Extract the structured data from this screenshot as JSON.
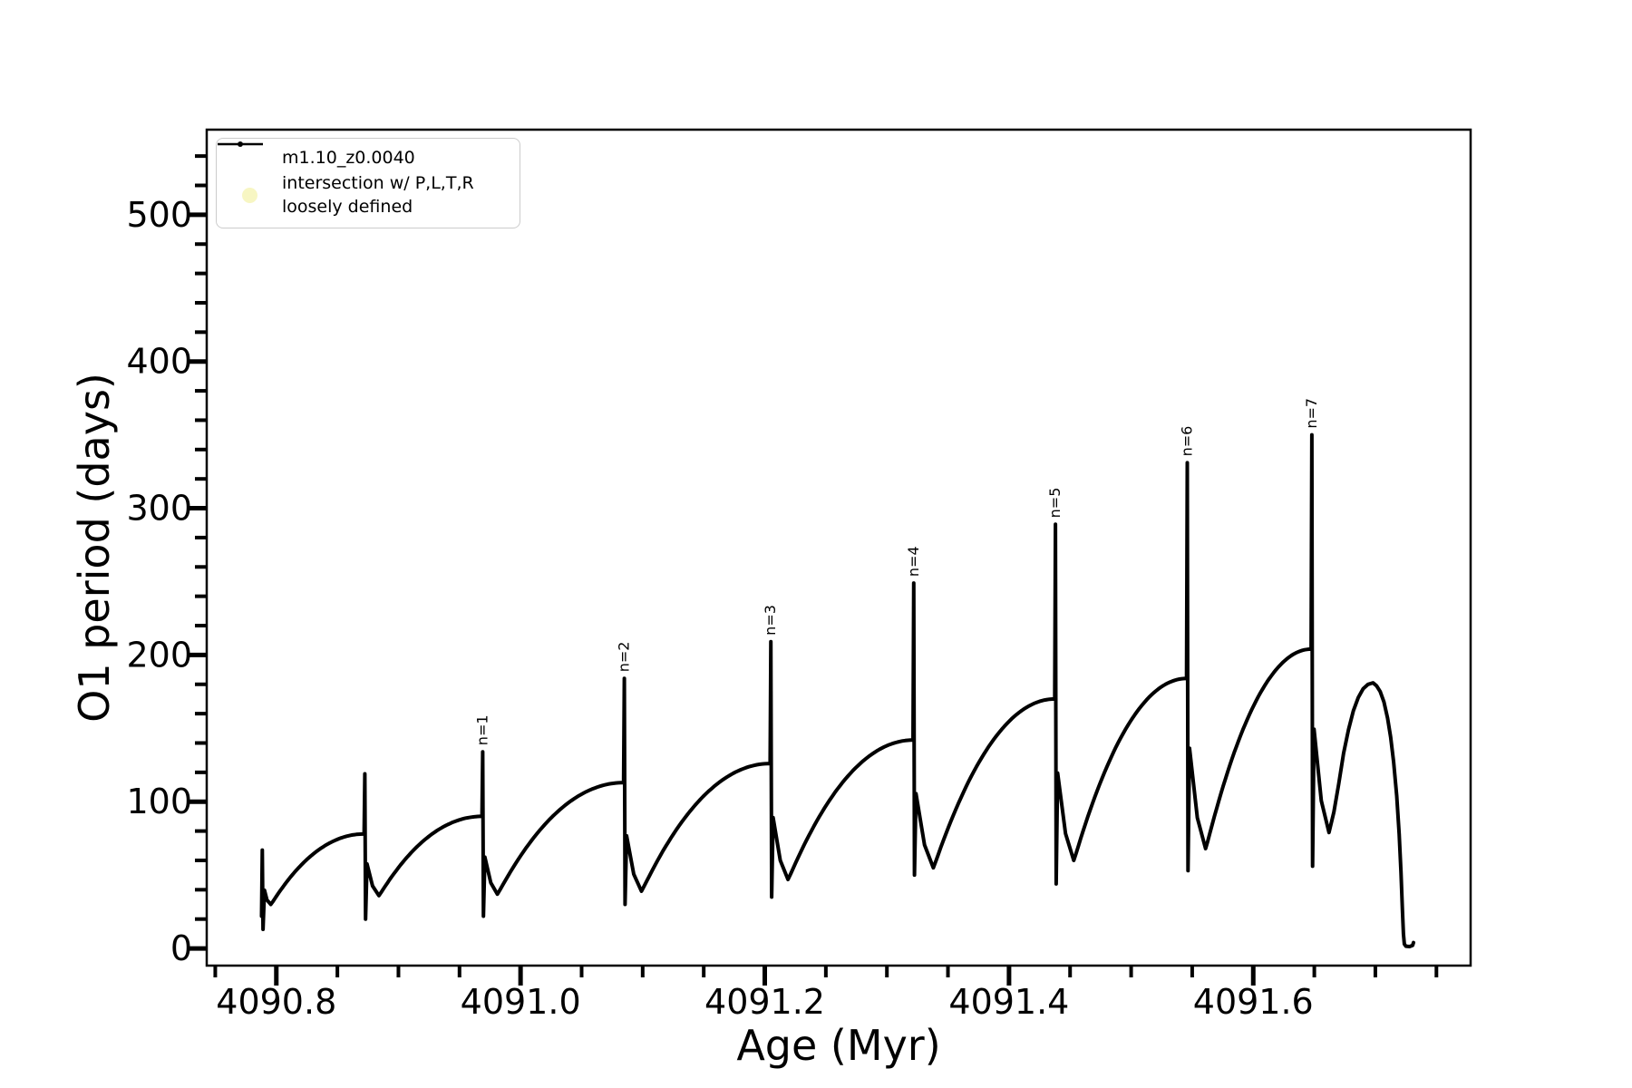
{
  "axes": {
    "xlabel": "Age (Myr)",
    "ylabel": "O1 period (days)"
  },
  "legend": {
    "entries": [
      {
        "label": "m1.10_z0.0040",
        "type": "line-with-dot-marker",
        "color": "#000000"
      },
      {
        "label_line1": "intersection w/ P,L,T,R",
        "label_line2": "loosely defined",
        "type": "circle-marker",
        "color": "#f7f6c3"
      }
    ]
  },
  "chart_data": {
    "type": "line",
    "title": "",
    "xlabel": "Age (Myr)",
    "ylabel": "O1 period (days)",
    "xlim": [
      4090.743,
      4091.778
    ],
    "ylim": [
      -11.7,
      558
    ],
    "grid": false,
    "legend_position": "upper left",
    "x_major_ticks": [
      4090.8,
      4091.0,
      4091.2,
      4091.4,
      4091.6
    ],
    "x_tick_labels": [
      "4090.8",
      "4091.0",
      "4091.2",
      "4091.4",
      "4091.6"
    ],
    "x_minor_step": 0.05,
    "y_major_ticks": [
      0,
      100,
      200,
      300,
      400,
      500
    ],
    "y_tick_labels": [
      "0",
      "100",
      "200",
      "300",
      "400",
      "500"
    ],
    "y_minor_step": 20,
    "series": [
      {
        "name": "m1.10_z0.0040",
        "color": "#000000",
        "marker": ".",
        "start": [
          4090.7879,
          22
        ],
        "cycles": [
          {
            "age": 4090.7885,
            "top": 67,
            "bottom": 13,
            "dip": 30,
            "dip_age": 4090.7955,
            "plateau_next": 78
          },
          {
            "age": 4090.8725,
            "top": 119,
            "bottom": 20,
            "dip": 36,
            "dip_age": 4090.884,
            "plateau_next": 90
          },
          {
            "age": 4090.969,
            "top": 134,
            "bottom": 22,
            "dip": 37,
            "dip_age": 4090.981,
            "plateau_next": 113
          },
          {
            "age": 4091.085,
            "top": 184,
            "bottom": 30,
            "dip": 39,
            "dip_age": 4091.099,
            "plateau_next": 126
          },
          {
            "age": 4091.205,
            "top": 209,
            "bottom": 35,
            "dip": 47,
            "dip_age": 4091.219,
            "plateau_next": 142
          },
          {
            "age": 4091.322,
            "top": 249,
            "bottom": 50,
            "dip": 55,
            "dip_age": 4091.338,
            "plateau_next": 170
          },
          {
            "age": 4091.438,
            "top": 289,
            "bottom": 44,
            "dip": 60,
            "dip_age": 4091.453,
            "plateau_next": 184
          },
          {
            "age": 4091.546,
            "top": 331,
            "bottom": 53,
            "dip": 68,
            "dip_age": 4091.561,
            "plateau_next": 204
          },
          {
            "age": 4091.648,
            "top": 350,
            "bottom": 56,
            "dip": 79,
            "dip_age": 4091.662,
            "plateau_next": null
          }
        ],
        "tail": [
          [
            4091.666,
            93
          ],
          [
            4091.67,
            112
          ],
          [
            4091.674,
            133
          ],
          [
            4091.678,
            149
          ],
          [
            4091.682,
            162
          ],
          [
            4091.686,
            171
          ],
          [
            4091.69,
            177
          ],
          [
            4091.694,
            180
          ],
          [
            4091.698,
            181
          ],
          [
            4091.701,
            179
          ],
          [
            4091.704,
            175
          ],
          [
            4091.707,
            168
          ],
          [
            4091.71,
            157
          ],
          [
            4091.7125,
            144
          ],
          [
            4091.715,
            127
          ],
          [
            4091.7175,
            104
          ],
          [
            4091.7195,
            78
          ],
          [
            4091.721,
            52
          ],
          [
            4091.7222,
            26
          ],
          [
            4091.723,
            10
          ],
          [
            4091.7237,
            3
          ],
          [
            4091.725,
            1.5
          ],
          [
            4091.728,
            1.3
          ],
          [
            4091.7305,
            2
          ],
          [
            4091.7312,
            4
          ]
        ]
      }
    ],
    "annotations": [
      {
        "text": "n=1",
        "age": 4090.969,
        "value": 134
      },
      {
        "text": "n=2",
        "age": 4091.085,
        "value": 184
      },
      {
        "text": "n=3",
        "age": 4091.205,
        "value": 209
      },
      {
        "text": "n=4",
        "age": 4091.322,
        "value": 249
      },
      {
        "text": "n=5",
        "age": 4091.438,
        "value": 289
      },
      {
        "text": "n=6",
        "age": 4091.546,
        "value": 331
      },
      {
        "text": "n=7",
        "age": 4091.648,
        "value": 350
      }
    ]
  }
}
